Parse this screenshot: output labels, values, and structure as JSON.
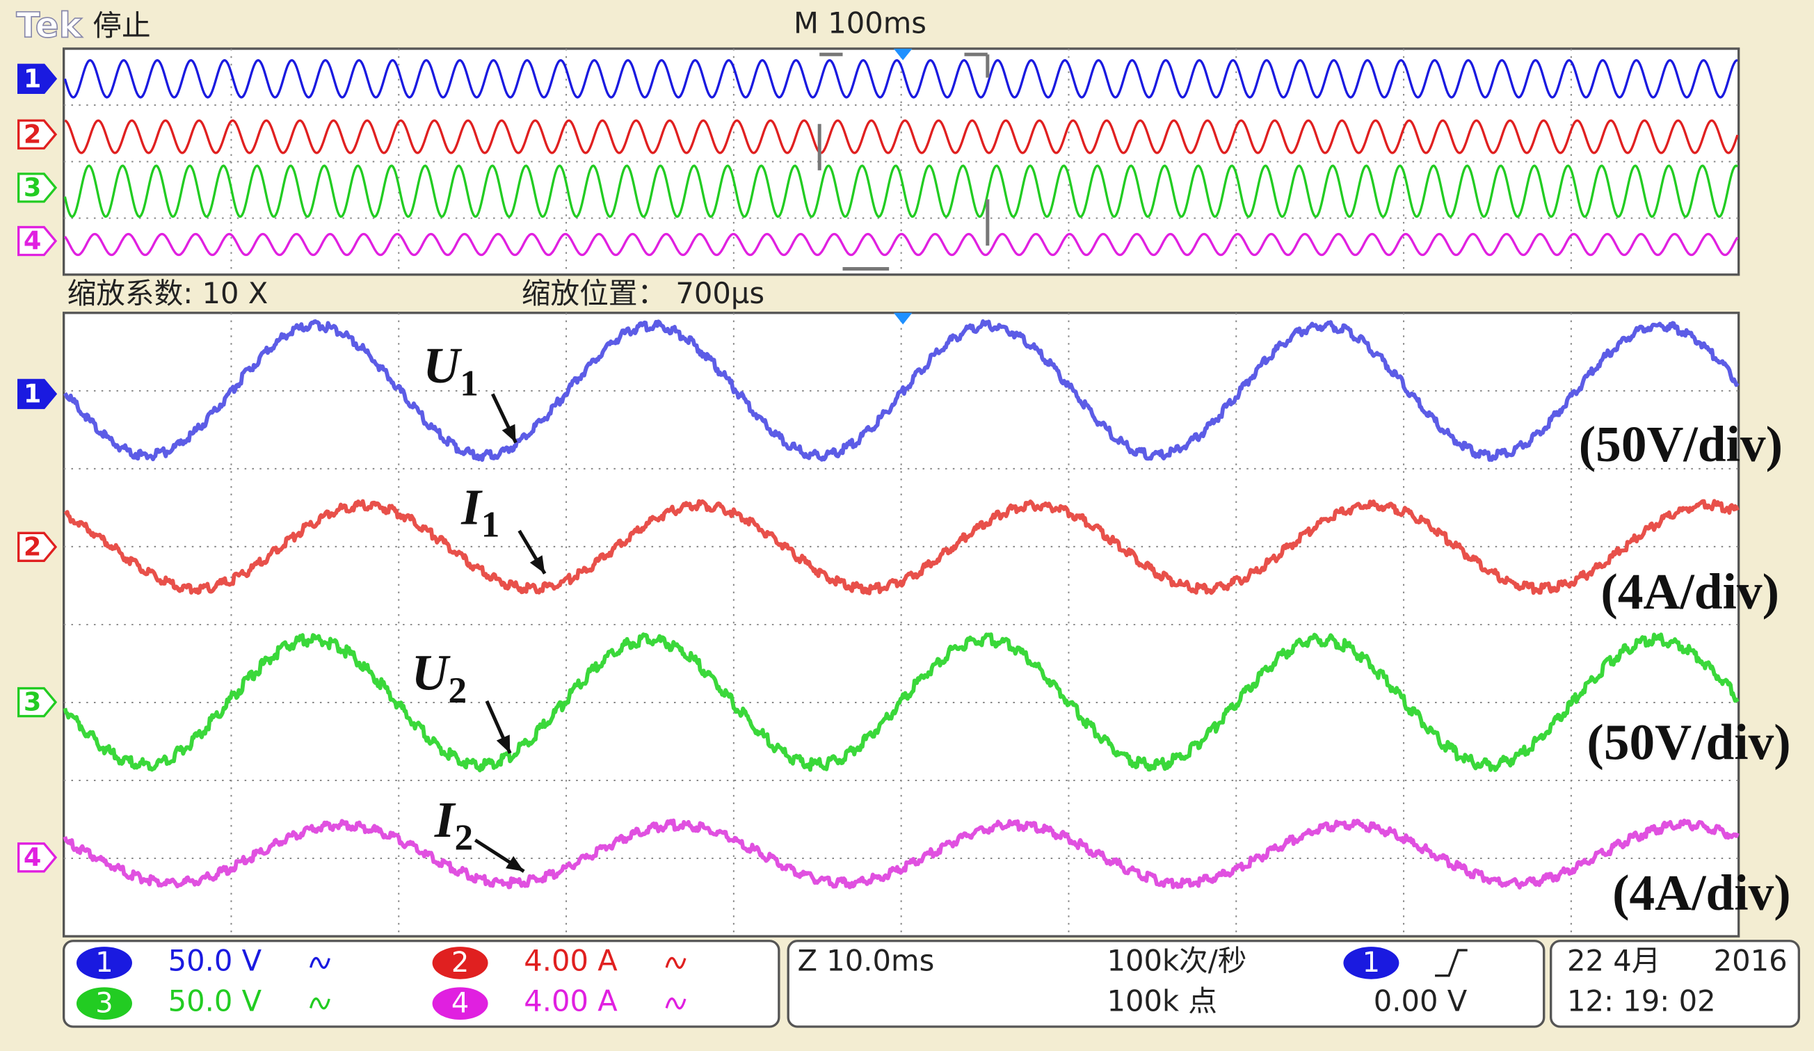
{
  "header": {
    "brand": "Tek",
    "status": "停止",
    "timebase": "M 100ms"
  },
  "zoom": {
    "factor": "缩放系数: 10 X",
    "position": "缩放位置： 700µs"
  },
  "markers": [
    "1",
    "2",
    "3",
    "4"
  ],
  "annotations": [
    {
      "label": "U",
      "sub": "1",
      "scale": "(50V/div)"
    },
    {
      "label": "I",
      "sub": "1",
      "scale": "(4A/div)"
    },
    {
      "label": "U",
      "sub": "2",
      "scale": "(50V/div)"
    },
    {
      "label": "I",
      "sub": "2",
      "scale": "(4A/div)"
    }
  ],
  "footer": {
    "channels": [
      {
        "id": "1",
        "scale": "50.0 V"
      },
      {
        "id": "2",
        "scale": "4.00 A"
      },
      {
        "id": "3",
        "scale": "50.0 V"
      },
      {
        "id": "4",
        "scale": "4.00 A"
      }
    ],
    "zoom": "Z 10.0ms",
    "rate": "100k次/秒",
    "points": "100k 点",
    "trigger": {
      "source": "1",
      "level": "0.00 V"
    },
    "date": "22 4月",
    "year": "2016",
    "time": "12: 19: 02"
  }
}
